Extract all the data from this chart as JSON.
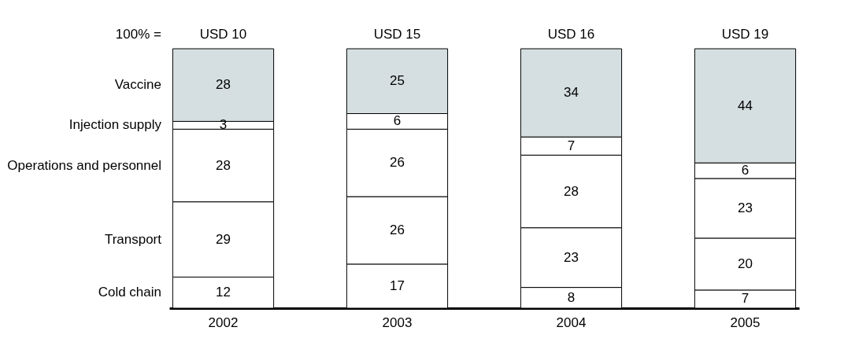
{
  "chart_data": {
    "type": "bar",
    "stacked": true,
    "data_labels": true,
    "categories": [
      "2002",
      "2003",
      "2004",
      "2005"
    ],
    "series": [
      {
        "name": "Cold chain",
        "color": "#ffffff",
        "values": [
          12,
          17,
          8,
          7
        ]
      },
      {
        "name": "Transport",
        "color": "#ffffff",
        "values": [
          29,
          26,
          23,
          20
        ]
      },
      {
        "name": "Operations and personnel",
        "color": "#ffffff",
        "values": [
          28,
          26,
          28,
          23
        ]
      },
      {
        "name": "Injection supply",
        "color": "#ffffff",
        "values": [
          3,
          6,
          7,
          6
        ]
      },
      {
        "name": "Vaccine",
        "color": "#d5dfe1",
        "values": [
          28,
          25,
          34,
          44
        ]
      }
    ],
    "totals": [
      "USD 10",
      "USD 15",
      "USD 16",
      "USD 19"
    ],
    "annotations": [
      "100% ="
    ]
  }
}
